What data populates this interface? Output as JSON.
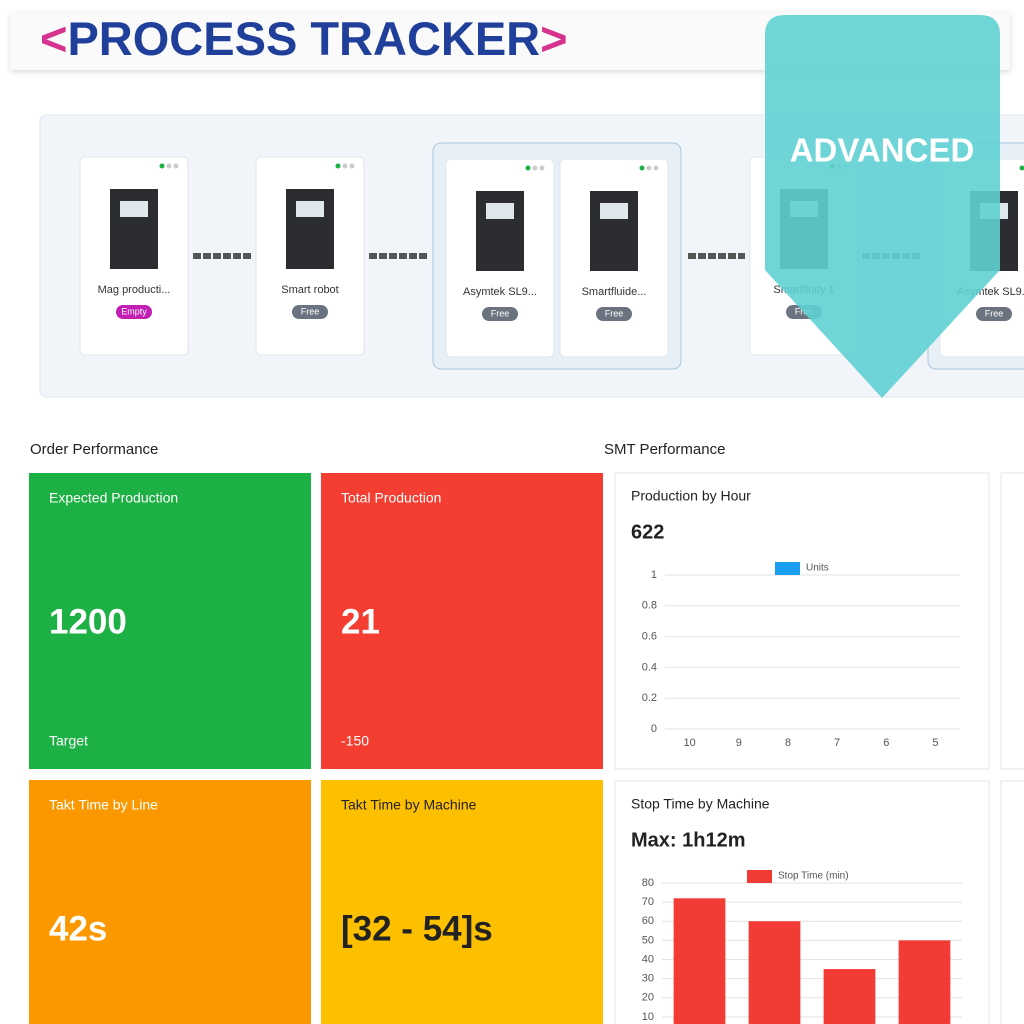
{
  "header": {
    "open": "<",
    "title": "PROCESS TRACKER",
    "close": ">"
  },
  "badge": "ADVANCED",
  "machines": [
    {
      "label": "Mag producti...",
      "status": "Empty",
      "status_color": "#c21fb5"
    },
    {
      "label": "Smart robot",
      "status": "Free",
      "status_color": "#6b7280"
    },
    {
      "label": "Asymtek SL9...",
      "status": "Free",
      "status_color": "#6b7280"
    },
    {
      "label": "Smartfluide...",
      "status": "Free",
      "status_color": "#6b7280"
    },
    {
      "label": "Smartfinity 1",
      "status": "Free",
      "status_color": "#6b7280"
    },
    {
      "label": "Asymtek SL9...",
      "status": "Free",
      "status_color": "#6b7280"
    }
  ],
  "sections": {
    "order": "Order Performance",
    "smt": "SMT Performance"
  },
  "kpis": [
    {
      "title": "Expected Production",
      "value": "1200",
      "note": "Target",
      "color": "#1db044"
    },
    {
      "title": "Total Production",
      "value": "21",
      "note": "-150",
      "color": "#f53e32"
    },
    {
      "title": "Takt Time by Line",
      "value": "42s",
      "color": "#fb9800"
    },
    {
      "title": "Takt Time by Machine",
      "value": "[32 - 54]s",
      "color": "#fdc000"
    }
  ],
  "chart_data": [
    {
      "type": "bar",
      "title": "Production by Hour",
      "headline": "622",
      "categories": [
        "10",
        "9",
        "8",
        "7",
        "6",
        "5"
      ],
      "series": [
        {
          "name": "Units",
          "color": "#1a9ff0",
          "values": [
            0,
            0,
            0,
            0,
            0,
            0
          ]
        }
      ],
      "ylim": [
        0,
        1
      ],
      "yticks": [
        0,
        0.2,
        0.4,
        0.6,
        0.8,
        1
      ],
      "grid": true
    },
    {
      "type": "bar",
      "title": "Stop Time by Machine",
      "headline": "Max: 1h12m",
      "categories": [
        null,
        null,
        null,
        null
      ],
      "series": [
        {
          "name": "Stop Time (min)",
          "color": "#f23b35",
          "values": [
            72,
            60,
            35,
            50
          ]
        }
      ],
      "ylim": [
        0,
        80
      ],
      "yticks": [
        10,
        20,
        30,
        40,
        50,
        60,
        70,
        80
      ],
      "grid": true
    }
  ]
}
